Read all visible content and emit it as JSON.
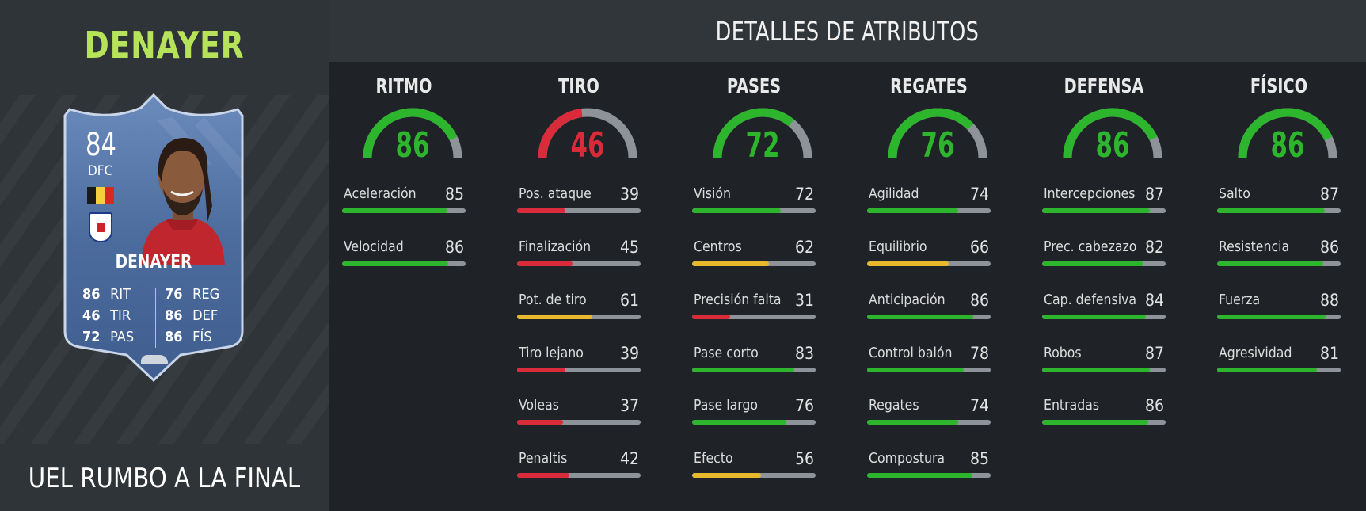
{
  "player": {
    "name": "DENAYER",
    "promo": "UEL RUMBO A LA FINAL"
  },
  "card": {
    "rating": "84",
    "position": "DFC",
    "name": "DENAYER",
    "stats": [
      {
        "value": "86",
        "label": "RIT"
      },
      {
        "value": "46",
        "label": "TIR"
      },
      {
        "value": "72",
        "label": "PAS"
      },
      {
        "value": "76",
        "label": "REG"
      },
      {
        "value": "86",
        "label": "DEF"
      },
      {
        "value": "86",
        "label": "FÍS"
      }
    ],
    "flag_colors": [
      "#1a1a1a",
      "#f4d03f",
      "#d52b1e"
    ],
    "card_color": "#4a6a9a"
  },
  "header": {
    "title": "DETALLES DE ATRIBUTOS"
  },
  "colors": {
    "green": "#2db52d",
    "yellow": "#e8b92c",
    "red": "#d92b3a",
    "track": "#8d9399"
  },
  "categories": [
    {
      "title": "RITMO",
      "value": 86,
      "attributes": [
        {
          "label": "Aceleración",
          "value": 85
        },
        {
          "label": "Velocidad",
          "value": 86
        }
      ]
    },
    {
      "title": "TIRO",
      "value": 46,
      "attributes": [
        {
          "label": "Pos. ataque",
          "value": 39
        },
        {
          "label": "Finalización",
          "value": 45
        },
        {
          "label": "Pot. de tiro",
          "value": 61
        },
        {
          "label": "Tiro lejano",
          "value": 39
        },
        {
          "label": "Voleas",
          "value": 37
        },
        {
          "label": "Penaltis",
          "value": 42
        }
      ]
    },
    {
      "title": "PASES",
      "value": 72,
      "attributes": [
        {
          "label": "Visión",
          "value": 72
        },
        {
          "label": "Centros",
          "value": 62
        },
        {
          "label": "Precisión falta",
          "value": 31
        },
        {
          "label": "Pase corto",
          "value": 83
        },
        {
          "label": "Pase largo",
          "value": 76
        },
        {
          "label": "Efecto",
          "value": 56
        }
      ]
    },
    {
      "title": "REGATES",
      "value": 76,
      "attributes": [
        {
          "label": "Agilidad",
          "value": 74
        },
        {
          "label": "Equilibrio",
          "value": 66
        },
        {
          "label": "Anticipación",
          "value": 86
        },
        {
          "label": "Control balón",
          "value": 78
        },
        {
          "label": "Regates",
          "value": 74
        },
        {
          "label": "Compostura",
          "value": 85
        }
      ]
    },
    {
      "title": "DEFENSA",
      "value": 86,
      "attributes": [
        {
          "label": "Intercepciones",
          "value": 87
        },
        {
          "label": "Prec. cabezazo",
          "value": 82
        },
        {
          "label": "Cap. defensiva",
          "value": 84
        },
        {
          "label": "Robos",
          "value": 87
        },
        {
          "label": "Entradas",
          "value": 86
        }
      ]
    },
    {
      "title": "FÍSICO",
      "value": 86,
      "attributes": [
        {
          "label": "Salto",
          "value": 87
        },
        {
          "label": "Resistencia",
          "value": 86
        },
        {
          "label": "Fuerza",
          "value": 88
        },
        {
          "label": "Agresividad",
          "value": 81
        }
      ]
    }
  ]
}
